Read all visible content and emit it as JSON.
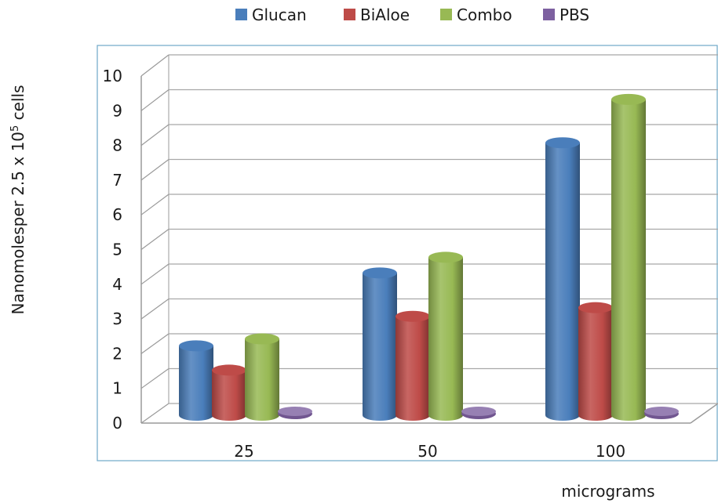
{
  "chart_data": {
    "type": "bar",
    "style": "3d-cylinder",
    "categories": [
      "25",
      "50",
      "100"
    ],
    "series": [
      {
        "name": "Glucan",
        "values": [
          2.0,
          4.1,
          7.85
        ],
        "color": "#4a7ebb"
      },
      {
        "name": "BiAloe",
        "values": [
          1.3,
          2.85,
          3.1
        ],
        "color": "#be4b48"
      },
      {
        "name": "Combo",
        "values": [
          2.2,
          4.55,
          9.1
        ],
        "color": "#98b954"
      },
      {
        "name": "PBS",
        "values": [
          0.05,
          0.05,
          0.05
        ],
        "color": "#7d60a0"
      }
    ],
    "yticks": [
      "0",
      "1",
      "2",
      "3",
      "4",
      "5",
      "6",
      "7",
      "8",
      "9",
      "10"
    ],
    "ylim": [
      0,
      10
    ],
    "ylabel_prefix": "Nanomolesper 2.5 x 10",
    "ylabel_sup": "5",
    "ylabel_suffix": " cells",
    "xlabel": "micrograms",
    "legend_position": "top",
    "grid": true
  }
}
